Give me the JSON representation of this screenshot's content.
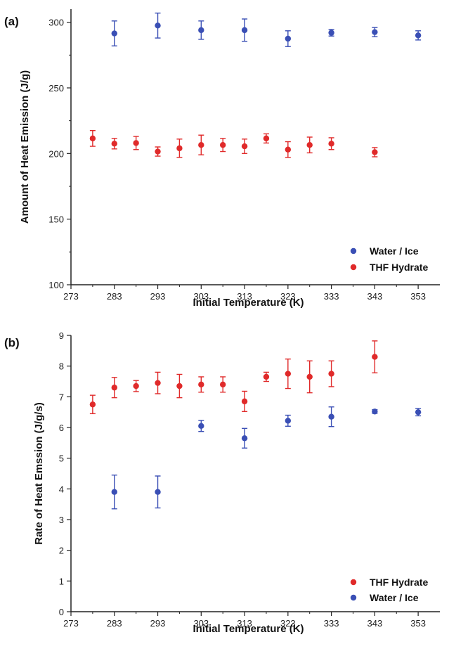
{
  "colors": {
    "water_ice": "#3a4fb5",
    "thf_hydrate": "#e02a2a",
    "axis": "#222222"
  },
  "chart_data": [
    {
      "panel_label": "(a)",
      "type": "scatter",
      "xlabel": "Initial Temperature (K)",
      "ylabel": "Amount of Heat Emission (J/g)",
      "xlim": [
        273,
        358
      ],
      "ylim": [
        100,
        310
      ],
      "xticks": [
        273,
        283,
        293,
        303,
        313,
        323,
        333,
        343,
        353
      ],
      "yticks": [
        100,
        150,
        200,
        250,
        300
      ],
      "legend_position": "bottom-right",
      "series": [
        {
          "name": "Water / Ice",
          "color": "#3a4fb5",
          "points": [
            {
              "x": 283,
              "y": 291.5,
              "err": 9.5
            },
            {
              "x": 293,
              "y": 297.5,
              "err": 9.5
            },
            {
              "x": 303,
              "y": 294,
              "err": 7
            },
            {
              "x": 313,
              "y": 294,
              "err": 8.5
            },
            {
              "x": 323,
              "y": 287.5,
              "err": 6
            },
            {
              "x": 333,
              "y": 292,
              "err": 2.5
            },
            {
              "x": 343,
              "y": 292.5,
              "err": 3.5
            },
            {
              "x": 353,
              "y": 290,
              "err": 3.5
            }
          ]
        },
        {
          "name": "THF Hydrate",
          "color": "#e02a2a",
          "points": [
            {
              "x": 278,
              "y": 211.5,
              "err": 6
            },
            {
              "x": 283,
              "y": 207.5,
              "err": 4
            },
            {
              "x": 288,
              "y": 208,
              "err": 5
            },
            {
              "x": 293,
              "y": 201.5,
              "err": 3.5
            },
            {
              "x": 298,
              "y": 204,
              "err": 7
            },
            {
              "x": 303,
              "y": 206.5,
              "err": 7.5
            },
            {
              "x": 308,
              "y": 206.5,
              "err": 5
            },
            {
              "x": 313,
              "y": 205.5,
              "err": 5.5
            },
            {
              "x": 318,
              "y": 211.5,
              "err": 3.5
            },
            {
              "x": 323,
              "y": 203,
              "err": 6
            },
            {
              "x": 328,
              "y": 206.5,
              "err": 6
            },
            {
              "x": 333,
              "y": 207.5,
              "err": 4.5
            },
            {
              "x": 343,
              "y": 201,
              "err": 3.5
            }
          ]
        }
      ]
    },
    {
      "panel_label": "(b)",
      "type": "scatter",
      "xlabel": "Initial Temperature (K)",
      "ylabel": "Rate of Heat Emssion (J/g/s)",
      "xlim": [
        273,
        358
      ],
      "ylim": [
        0,
        9
      ],
      "xticks": [
        273,
        283,
        293,
        303,
        313,
        323,
        333,
        343,
        353
      ],
      "yticks": [
        0,
        1,
        2,
        3,
        4,
        5,
        6,
        7,
        8,
        9
      ],
      "legend_position": "bottom-right",
      "series": [
        {
          "name": "THF Hydrate",
          "color": "#e02a2a",
          "points": [
            {
              "x": 278,
              "y": 6.75,
              "err": 0.3
            },
            {
              "x": 283,
              "y": 7.3,
              "err": 0.33
            },
            {
              "x": 288,
              "y": 7.35,
              "err": 0.18
            },
            {
              "x": 293,
              "y": 7.45,
              "err": 0.35
            },
            {
              "x": 298,
              "y": 7.35,
              "err": 0.38
            },
            {
              "x": 303,
              "y": 7.4,
              "err": 0.25
            },
            {
              "x": 308,
              "y": 7.4,
              "err": 0.25
            },
            {
              "x": 313,
              "y": 6.85,
              "err": 0.33
            },
            {
              "x": 318,
              "y": 7.65,
              "err": 0.15
            },
            {
              "x": 323,
              "y": 7.75,
              "err": 0.48
            },
            {
              "x": 328,
              "y": 7.65,
              "err": 0.52
            },
            {
              "x": 333,
              "y": 7.75,
              "err": 0.42
            },
            {
              "x": 343,
              "y": 8.3,
              "err": 0.52
            }
          ]
        },
        {
          "name": "Water / Ice",
          "color": "#3a4fb5",
          "points": [
            {
              "x": 283,
              "y": 3.9,
              "err": 0.55
            },
            {
              "x": 293,
              "y": 3.9,
              "err": 0.52
            },
            {
              "x": 303,
              "y": 6.05,
              "err": 0.18
            },
            {
              "x": 313,
              "y": 5.65,
              "err": 0.32
            },
            {
              "x": 323,
              "y": 6.22,
              "err": 0.18
            },
            {
              "x": 333,
              "y": 6.35,
              "err": 0.32
            },
            {
              "x": 343,
              "y": 6.52,
              "err": 0.06
            },
            {
              "x": 353,
              "y": 6.5,
              "err": 0.12
            }
          ]
        }
      ]
    }
  ]
}
